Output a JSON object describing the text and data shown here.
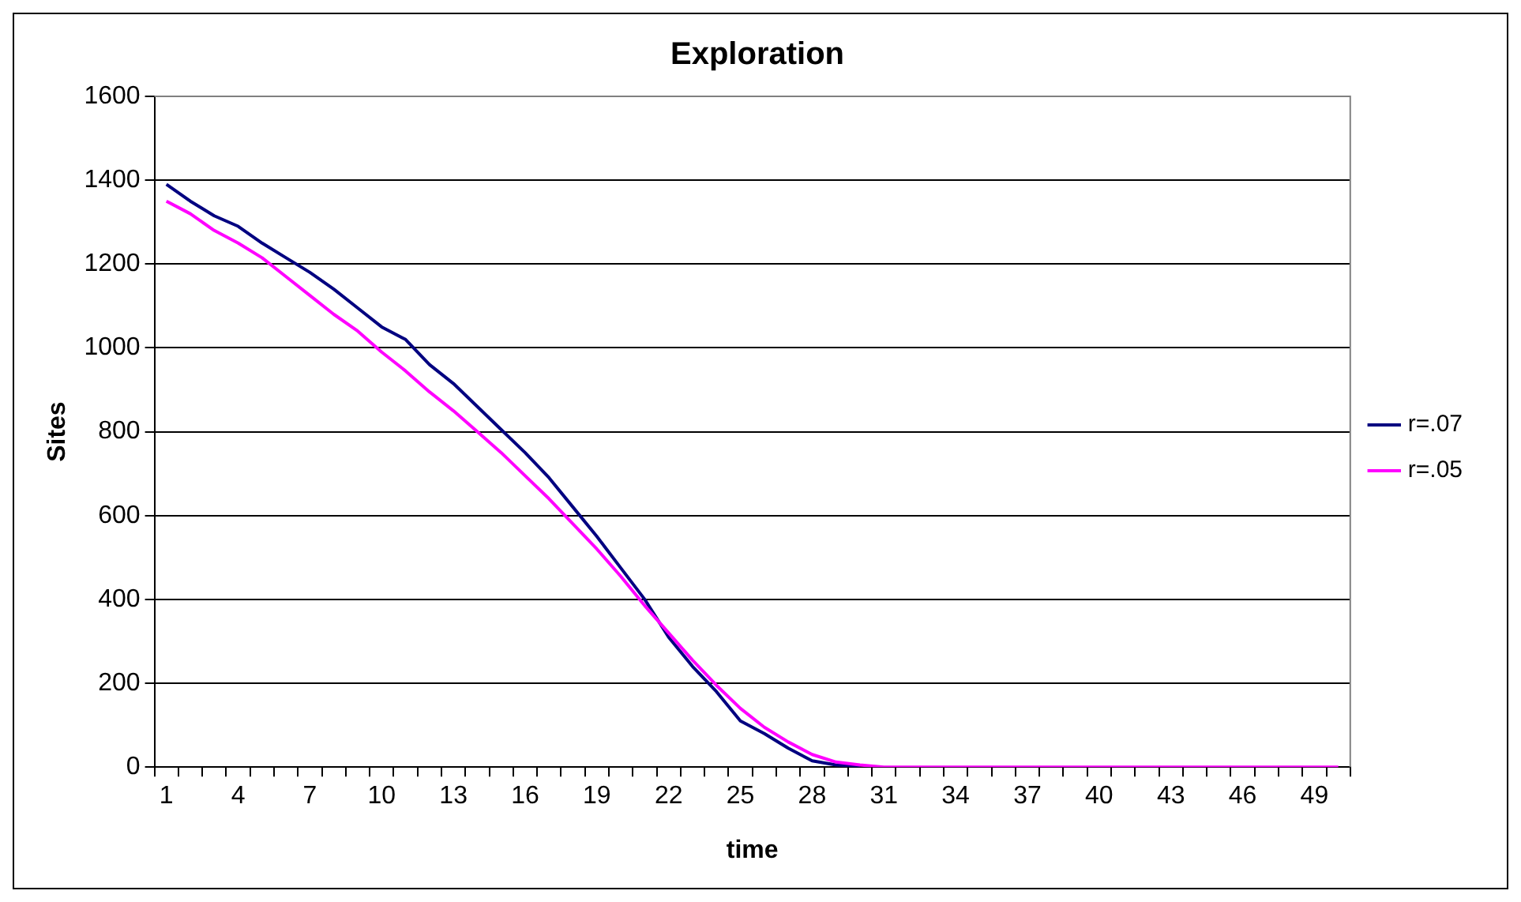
{
  "chart_data": {
    "type": "line",
    "title": "Exploration",
    "xlabel": "time",
    "ylabel": "Sites",
    "categories": [
      "1",
      null,
      null,
      "4",
      null,
      null,
      "7",
      null,
      null,
      "10",
      null,
      null,
      "13",
      null,
      null,
      "16",
      null,
      null,
      "19",
      null,
      null,
      "22",
      null,
      null,
      "25",
      null,
      null,
      "28",
      null,
      null,
      "31",
      null,
      null,
      "34",
      null,
      null,
      "37",
      null,
      null,
      "40",
      null,
      null,
      "43",
      null,
      null,
      "46",
      null,
      null,
      "49",
      null
    ],
    "series": [
      {
        "name": "r=.07",
        "color": "#000080",
        "values": [
          1390,
          1350,
          1315,
          1290,
          1250,
          1215,
          1180,
          1140,
          1095,
          1050,
          1020,
          960,
          915,
          860,
          805,
          750,
          690,
          620,
          550,
          475,
          400,
          310,
          240,
          180,
          110,
          80,
          45,
          15,
          5,
          2,
          null,
          null,
          null,
          null,
          null,
          null,
          null,
          null,
          null,
          null,
          null,
          null,
          null,
          null,
          null,
          null,
          null,
          null,
          null,
          null
        ]
      },
      {
        "name": "r=.05",
        "color": "#ff00ff",
        "values": [
          1350,
          1320,
          1280,
          1250,
          1215,
          1170,
          1125,
          1080,
          1040,
          990,
          945,
          895,
          850,
          800,
          750,
          695,
          640,
          580,
          520,
          455,
          385,
          320,
          255,
          195,
          140,
          95,
          60,
          30,
          12,
          5,
          0,
          0,
          0,
          0,
          0,
          0,
          0,
          0,
          0,
          0,
          0,
          0,
          0,
          0,
          0,
          0,
          0,
          0,
          0,
          0
        ]
      }
    ],
    "ylim": [
      0,
      1600
    ],
    "yticks": [
      0,
      200,
      400,
      600,
      800,
      1000,
      1200,
      1400,
      1600
    ],
    "grid": "y",
    "legend": "right",
    "marker": "none",
    "line_style": "solid"
  }
}
